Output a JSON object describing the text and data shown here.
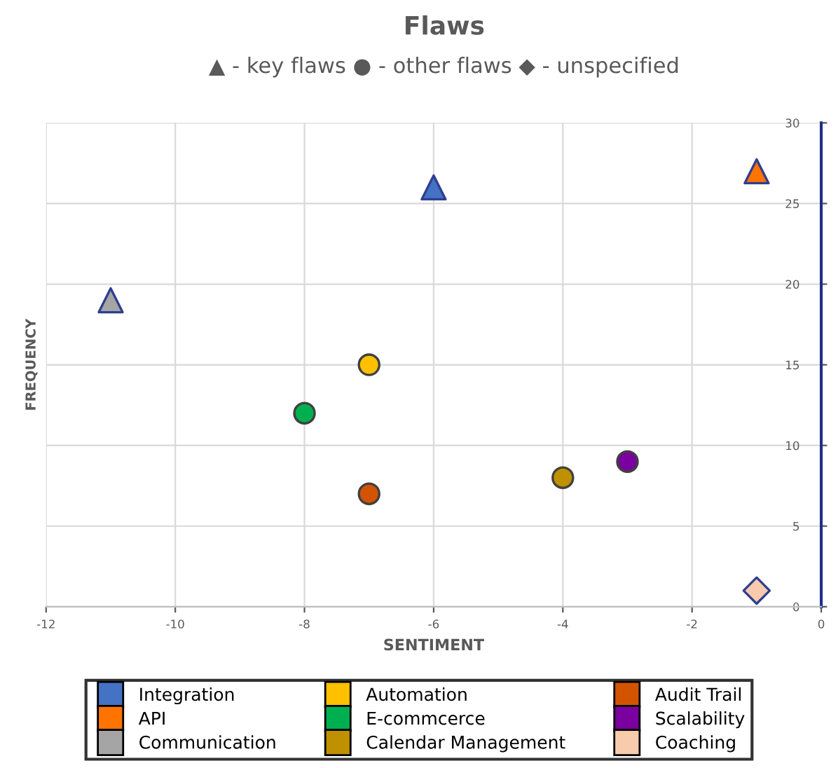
{
  "chart_data": {
    "type": "scatter",
    "title": "Flaws",
    "subtitle": "▲ - key flaws ● - other flaws ◆ - unspecified",
    "xlabel": "SENTIMENT",
    "ylabel": "FREQUENCY",
    "xlim": [
      -12,
      0
    ],
    "xticks": [
      -12,
      -10,
      -8,
      -6,
      -4,
      -2,
      0
    ],
    "ylim": [
      0,
      30
    ],
    "yticks": [
      0,
      5,
      10,
      15,
      20,
      25,
      30
    ],
    "grid": true,
    "legend": "bottom",
    "series": [
      {
        "name": "Integration",
        "color": "#4472c4",
        "marker": "triangle",
        "x": [
          -6
        ],
        "values": [
          26
        ]
      },
      {
        "name": "API",
        "color": "#ff7300",
        "marker": "triangle",
        "x": [
          -1
        ],
        "values": [
          27
        ]
      },
      {
        "name": "Communication",
        "color": "#a5a5a5",
        "marker": "triangle",
        "x": [
          -11
        ],
        "values": [
          19
        ]
      },
      {
        "name": "Automation",
        "color": "#ffc000",
        "marker": "circle",
        "x": [
          -7
        ],
        "values": [
          15
        ]
      },
      {
        "name": "E-commcerce",
        "color": "#00b050",
        "marker": "circle",
        "x": [
          -8
        ],
        "values": [
          12
        ]
      },
      {
        "name": "Calendar Management",
        "color": "#bf9000",
        "marker": "circle",
        "x": [
          -4
        ],
        "values": [
          8
        ]
      },
      {
        "name": "Audit Trail",
        "color": "#d35400",
        "marker": "circle",
        "x": [
          -7
        ],
        "values": [
          7
        ]
      },
      {
        "name": "Scalability",
        "color": "#7a00a0",
        "marker": "circle",
        "x": [
          -3
        ],
        "values": [
          9
        ]
      },
      {
        "name": "Coaching",
        "color": "#f8cbad",
        "marker": "diamond",
        "x": [
          -1
        ],
        "values": [
          1
        ]
      }
    ]
  }
}
